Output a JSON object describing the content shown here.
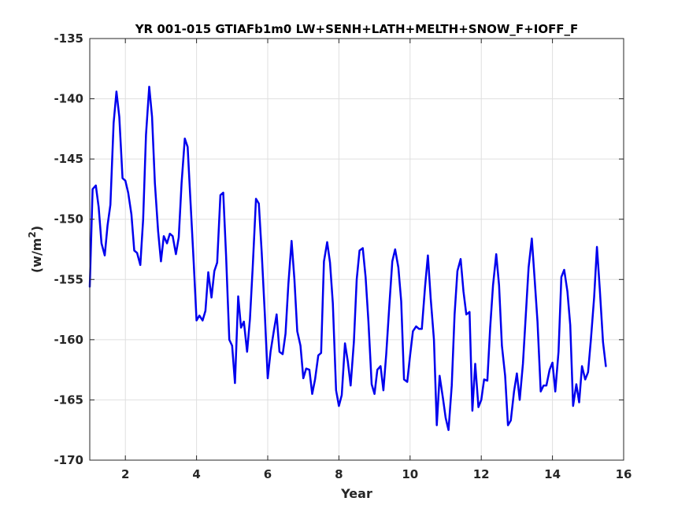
{
  "chart_data": {
    "type": "line",
    "title": "YR 001-015 GTIAFb1m0 LW+SENH+LATH+MELTH+SNOW_F+IOFF_F",
    "xlabel": "Year",
    "ylabel": "(w/m",
    "ylabel_superscript": "2",
    "ylabel_close": ")",
    "xlim": [
      1,
      16
    ],
    "ylim": [
      -170,
      -135
    ],
    "xticks": [
      2,
      4,
      6,
      8,
      10,
      12,
      14,
      16
    ],
    "yticks": [
      -170,
      -165,
      -160,
      -155,
      -150,
      -145,
      -140,
      -135
    ],
    "grid": true,
    "line_color": "#0000ee",
    "series": [
      {
        "points": [
          [
            1.0,
            -155.6
          ],
          [
            1.08,
            -147.5
          ],
          [
            1.17,
            -147.2
          ],
          [
            1.25,
            -149.0
          ],
          [
            1.33,
            -152.0
          ],
          [
            1.42,
            -153.0
          ],
          [
            1.5,
            -150.5
          ],
          [
            1.58,
            -148.8
          ],
          [
            1.67,
            -142.0
          ],
          [
            1.75,
            -139.4
          ],
          [
            1.83,
            -141.5
          ],
          [
            1.92,
            -146.6
          ],
          [
            2.0,
            -146.8
          ],
          [
            2.08,
            -147.8
          ],
          [
            2.17,
            -149.6
          ],
          [
            2.25,
            -152.6
          ],
          [
            2.33,
            -152.8
          ],
          [
            2.42,
            -153.8
          ],
          [
            2.5,
            -150.0
          ],
          [
            2.58,
            -143.0
          ],
          [
            2.67,
            -139.0
          ],
          [
            2.75,
            -141.5
          ],
          [
            2.83,
            -147.0
          ],
          [
            2.92,
            -151.0
          ],
          [
            3.0,
            -153.5
          ],
          [
            3.08,
            -151.4
          ],
          [
            3.17,
            -152.0
          ],
          [
            3.25,
            -151.2
          ],
          [
            3.33,
            -151.4
          ],
          [
            3.42,
            -152.9
          ],
          [
            3.5,
            -151.5
          ],
          [
            3.58,
            -147.0
          ],
          [
            3.67,
            -143.3
          ],
          [
            3.75,
            -144.0
          ],
          [
            3.83,
            -148.5
          ],
          [
            3.92,
            -153.6
          ],
          [
            4.0,
            -158.4
          ],
          [
            4.08,
            -158.0
          ],
          [
            4.17,
            -158.4
          ],
          [
            4.25,
            -157.6
          ],
          [
            4.33,
            -154.4
          ],
          [
            4.42,
            -156.5
          ],
          [
            4.5,
            -154.3
          ],
          [
            4.58,
            -153.6
          ],
          [
            4.67,
            -148.0
          ],
          [
            4.75,
            -147.8
          ],
          [
            4.83,
            -153.0
          ],
          [
            4.92,
            -160.0
          ],
          [
            5.0,
            -160.5
          ],
          [
            5.08,
            -163.6
          ],
          [
            5.17,
            -156.4
          ],
          [
            5.25,
            -159.0
          ],
          [
            5.33,
            -158.5
          ],
          [
            5.42,
            -161.0
          ],
          [
            5.5,
            -158.3
          ],
          [
            5.58,
            -153.9
          ],
          [
            5.67,
            -148.3
          ],
          [
            5.75,
            -148.7
          ],
          [
            5.83,
            -152.7
          ],
          [
            5.92,
            -158.0
          ],
          [
            6.0,
            -163.2
          ],
          [
            6.08,
            -161.0
          ],
          [
            6.17,
            -159.3
          ],
          [
            6.25,
            -157.9
          ],
          [
            6.33,
            -161.0
          ],
          [
            6.42,
            -161.2
          ],
          [
            6.5,
            -159.5
          ],
          [
            6.58,
            -155.4
          ],
          [
            6.67,
            -151.8
          ],
          [
            6.75,
            -155.0
          ],
          [
            6.83,
            -159.3
          ],
          [
            6.92,
            -160.5
          ],
          [
            7.0,
            -163.2
          ],
          [
            7.08,
            -162.4
          ],
          [
            7.17,
            -162.5
          ],
          [
            7.25,
            -164.5
          ],
          [
            7.33,
            -163.3
          ],
          [
            7.42,
            -161.3
          ],
          [
            7.5,
            -161.1
          ],
          [
            7.58,
            -153.5
          ],
          [
            7.67,
            -151.9
          ],
          [
            7.75,
            -153.6
          ],
          [
            7.83,
            -157.0
          ],
          [
            7.92,
            -164.2
          ],
          [
            8.0,
            -165.5
          ],
          [
            8.08,
            -164.6
          ],
          [
            8.17,
            -160.3
          ],
          [
            8.25,
            -161.8
          ],
          [
            8.33,
            -163.8
          ],
          [
            8.42,
            -160.2
          ],
          [
            8.5,
            -155.0
          ],
          [
            8.58,
            -152.6
          ],
          [
            8.67,
            -152.4
          ],
          [
            8.75,
            -154.8
          ],
          [
            8.83,
            -158.5
          ],
          [
            8.92,
            -163.7
          ],
          [
            9.0,
            -164.5
          ],
          [
            9.08,
            -162.5
          ],
          [
            9.17,
            -162.2
          ],
          [
            9.25,
            -164.2
          ],
          [
            9.33,
            -161.2
          ],
          [
            9.42,
            -157.0
          ],
          [
            9.5,
            -153.5
          ],
          [
            9.58,
            -152.5
          ],
          [
            9.67,
            -154.0
          ],
          [
            9.75,
            -156.8
          ],
          [
            9.83,
            -163.3
          ],
          [
            9.92,
            -163.5
          ],
          [
            10.0,
            -161.3
          ],
          [
            10.08,
            -159.3
          ],
          [
            10.17,
            -158.9
          ],
          [
            10.25,
            -159.1
          ],
          [
            10.33,
            -159.1
          ],
          [
            10.42,
            -155.6
          ],
          [
            10.5,
            -153.0
          ],
          [
            10.58,
            -156.6
          ],
          [
            10.67,
            -160.0
          ],
          [
            10.75,
            -167.1
          ],
          [
            10.83,
            -163.0
          ],
          [
            10.92,
            -164.8
          ],
          [
            11.0,
            -166.5
          ],
          [
            11.08,
            -167.5
          ],
          [
            11.17,
            -163.8
          ],
          [
            11.25,
            -157.9
          ],
          [
            11.33,
            -154.3
          ],
          [
            11.42,
            -153.3
          ],
          [
            11.5,
            -156.0
          ],
          [
            11.58,
            -157.9
          ],
          [
            11.67,
            -157.7
          ],
          [
            11.75,
            -165.9
          ],
          [
            11.83,
            -162.0
          ],
          [
            11.92,
            -165.6
          ],
          [
            12.0,
            -165.0
          ],
          [
            12.08,
            -163.3
          ],
          [
            12.17,
            -163.4
          ],
          [
            12.25,
            -159.0
          ],
          [
            12.33,
            -155.5
          ],
          [
            12.42,
            -152.9
          ],
          [
            12.5,
            -155.5
          ],
          [
            12.58,
            -160.5
          ],
          [
            12.67,
            -163.0
          ],
          [
            12.75,
            -167.1
          ],
          [
            12.83,
            -166.7
          ],
          [
            12.92,
            -164.3
          ],
          [
            13.0,
            -162.8
          ],
          [
            13.08,
            -165.0
          ],
          [
            13.17,
            -162.0
          ],
          [
            13.25,
            -158.0
          ],
          [
            13.33,
            -154.0
          ],
          [
            13.42,
            -151.6
          ],
          [
            13.5,
            -155.0
          ],
          [
            13.58,
            -158.5
          ],
          [
            13.67,
            -164.3
          ],
          [
            13.75,
            -163.8
          ],
          [
            13.83,
            -163.8
          ],
          [
            13.92,
            -162.5
          ],
          [
            14.0,
            -161.9
          ],
          [
            14.08,
            -164.3
          ],
          [
            14.17,
            -161.0
          ],
          [
            14.25,
            -154.8
          ],
          [
            14.33,
            -154.2
          ],
          [
            14.42,
            -156.0
          ],
          [
            14.5,
            -158.8
          ],
          [
            14.58,
            -165.5
          ],
          [
            14.67,
            -163.7
          ],
          [
            14.75,
            -165.2
          ],
          [
            14.83,
            -162.2
          ],
          [
            14.92,
            -163.3
          ],
          [
            15.0,
            -162.7
          ],
          [
            15.08,
            -160.0
          ],
          [
            15.17,
            -156.5
          ],
          [
            15.25,
            -152.3
          ],
          [
            15.33,
            -155.8
          ],
          [
            15.42,
            -160.2
          ],
          [
            15.5,
            -162.2
          ]
        ]
      }
    ]
  }
}
